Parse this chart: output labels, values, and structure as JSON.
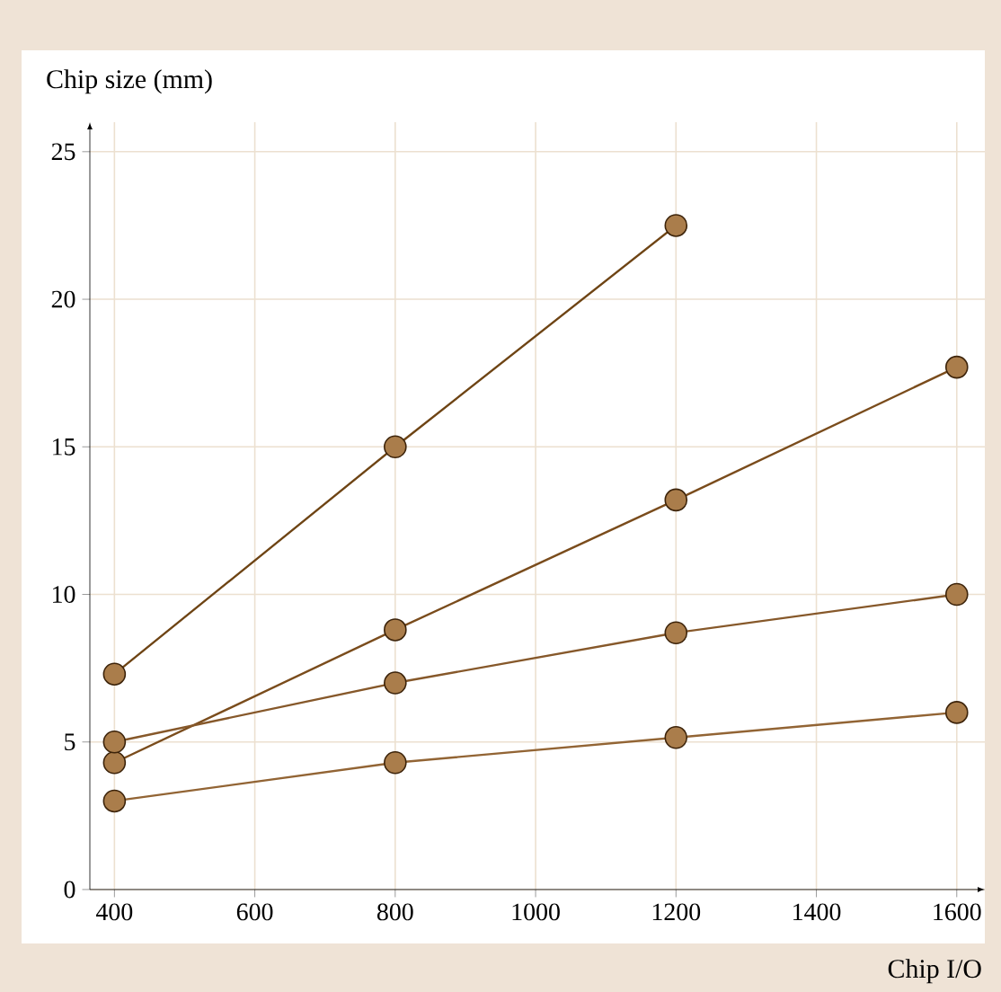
{
  "chart_data": {
    "type": "line",
    "xlabel": "Chip I/O",
    "ylabel": "Chip size (mm)",
    "x": [
      400,
      800,
      1200,
      1600
    ],
    "series": [
      {
        "color": "#6e4414",
        "values": [
          7.3,
          15,
          22.5,
          null
        ]
      },
      {
        "color": "#7a4c1c",
        "values": [
          4.3,
          8.8,
          13.2,
          17.7
        ]
      },
      {
        "color": "#86582a",
        "values": [
          5.0,
          7.0,
          8.7,
          10.0
        ]
      },
      {
        "color": "#926434",
        "values": [
          3.0,
          4.3,
          5.15,
          6.0
        ]
      }
    ],
    "xlim": [
      365,
      1640
    ],
    "ylim": [
      0,
      26
    ],
    "xticks": [
      400,
      600,
      800,
      1000,
      1200,
      1400,
      1600
    ],
    "yticks": [
      0,
      5,
      10,
      15,
      20,
      25
    ],
    "grid": true,
    "marker": "circle",
    "line_style": "solid"
  }
}
